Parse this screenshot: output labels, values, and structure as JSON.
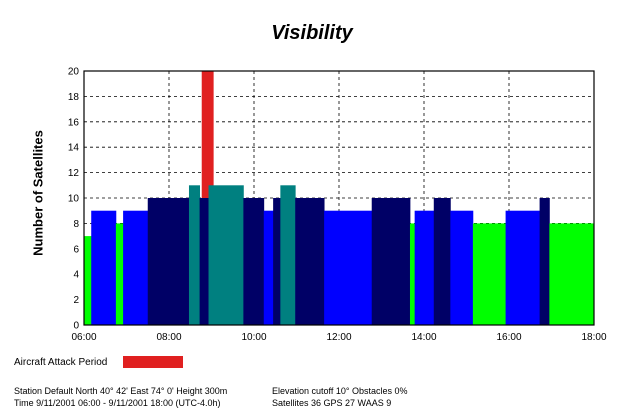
{
  "chart_data": {
    "type": "bar",
    "title": "Visibility",
    "ylabel": "Number of Satellites",
    "xlabel": "",
    "ylim": [
      0,
      20
    ],
    "yticks": [
      0,
      2,
      4,
      6,
      8,
      10,
      12,
      14,
      16,
      18,
      20
    ],
    "xticks": [
      "06:00",
      "08:00",
      "10:00",
      "12:00",
      "14:00",
      "16:00",
      "18:00"
    ],
    "xlim_hours": [
      6,
      18
    ],
    "grid": true,
    "colors": {
      "bright_green": "#00ff00",
      "blue": "#0000ff",
      "navy": "#000066",
      "teal": "#008080",
      "red": "#e02020"
    },
    "intervals": [
      {
        "start": 6.0,
        "end": 6.17,
        "value": 7,
        "color": "bright_green"
      },
      {
        "start": 6.17,
        "end": 6.75,
        "value": 9,
        "color": "blue"
      },
      {
        "start": 6.75,
        "end": 6.92,
        "value": 8,
        "color": "bright_green"
      },
      {
        "start": 6.92,
        "end": 7.5,
        "value": 9,
        "color": "blue"
      },
      {
        "start": 7.5,
        "end": 7.8,
        "value": 10,
        "color": "navy"
      },
      {
        "start": 7.8,
        "end": 8.47,
        "value": 10,
        "color": "navy"
      },
      {
        "start": 8.47,
        "end": 8.72,
        "value": 11,
        "color": "teal"
      },
      {
        "start": 8.72,
        "end": 8.93,
        "value": 10,
        "color": "navy"
      },
      {
        "start": 8.93,
        "end": 9.75,
        "value": 11,
        "color": "teal"
      },
      {
        "start": 9.75,
        "end": 10.23,
        "value": 10,
        "color": "navy"
      },
      {
        "start": 10.23,
        "end": 10.45,
        "value": 9,
        "color": "blue"
      },
      {
        "start": 10.45,
        "end": 10.62,
        "value": 10,
        "color": "navy"
      },
      {
        "start": 10.62,
        "end": 10.97,
        "value": 11,
        "color": "teal"
      },
      {
        "start": 10.97,
        "end": 11.65,
        "value": 10,
        "color": "navy"
      },
      {
        "start": 11.65,
        "end": 12.77,
        "value": 9,
        "color": "blue"
      },
      {
        "start": 12.77,
        "end": 13.67,
        "value": 10,
        "color": "navy"
      },
      {
        "start": 13.67,
        "end": 13.78,
        "value": 8,
        "color": "bright_green"
      },
      {
        "start": 13.78,
        "end": 14.23,
        "value": 9,
        "color": "blue"
      },
      {
        "start": 14.23,
        "end": 14.62,
        "value": 10,
        "color": "navy"
      },
      {
        "start": 14.62,
        "end": 15.15,
        "value": 9,
        "color": "blue"
      },
      {
        "start": 15.15,
        "end": 15.92,
        "value": 8,
        "color": "bright_green"
      },
      {
        "start": 15.92,
        "end": 16.72,
        "value": 9,
        "color": "blue"
      },
      {
        "start": 16.72,
        "end": 16.95,
        "value": 10,
        "color": "navy"
      },
      {
        "start": 16.95,
        "end": 18.0,
        "value": 8,
        "color": "bright_green"
      }
    ],
    "attack_period": {
      "start": 8.77,
      "end": 9.05,
      "value": 20,
      "color": "red"
    },
    "legend": {
      "label": "Aircraft Attack Period",
      "placement": "bottom-left"
    }
  },
  "info": {
    "station": "Station Default  North 40° 42'   East 74° 0'    Height 300m",
    "time": "Time 9/11/2001 06:00 -  9/11/2001 18:00 (UTC-4.0h)",
    "elevation": "Elevation cutoff 10°  Obstacles 0%",
    "satellites": "Satellites 36   GPS 27   WAAS 9"
  }
}
